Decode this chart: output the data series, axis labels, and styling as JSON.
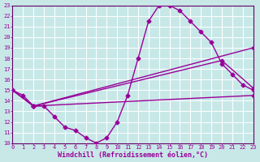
{
  "xlabel": "Windchill (Refroidissement éolien,°C)",
  "xlim": [
    0,
    23
  ],
  "ylim": [
    10,
    23
  ],
  "xticks": [
    0,
    1,
    2,
    3,
    4,
    5,
    6,
    7,
    8,
    9,
    10,
    11,
    12,
    13,
    14,
    15,
    16,
    17,
    18,
    19,
    20,
    21,
    22,
    23
  ],
  "yticks": [
    10,
    11,
    12,
    13,
    14,
    15,
    16,
    17,
    18,
    19,
    20,
    21,
    22,
    23
  ],
  "background_color": "#c8e8e8",
  "grid_color": "#ffffff",
  "line_color": "#990099",
  "lines": [
    {
      "x": [
        0,
        1,
        2,
        3,
        4,
        5,
        6,
        7,
        8,
        9,
        10,
        11,
        12,
        13,
        14,
        15,
        16,
        17,
        18,
        19,
        20,
        21,
        22,
        23
      ],
      "y": [
        15.0,
        14.5,
        13.5,
        13.5,
        12.5,
        11.5,
        11.2,
        10.5,
        10.0,
        10.5,
        12.0,
        14.5,
        18.0,
        21.5,
        23.0,
        23.0,
        22.5,
        21.5,
        20.5,
        19.5,
        17.5,
        16.5,
        15.5,
        15.0
      ]
    },
    {
      "x": [
        0,
        2,
        23
      ],
      "y": [
        15.0,
        13.5,
        19.0
      ]
    },
    {
      "x": [
        0,
        2,
        20,
        23
      ],
      "y": [
        15.0,
        13.5,
        17.8,
        15.2
      ]
    },
    {
      "x": [
        0,
        2,
        23
      ],
      "y": [
        15.0,
        13.5,
        14.5
      ]
    }
  ],
  "marker": "D",
  "markersize": 2.5,
  "linewidth": 1.0,
  "tick_fontsize": 5,
  "label_fontsize": 6,
  "axis_line_color": "#660066"
}
